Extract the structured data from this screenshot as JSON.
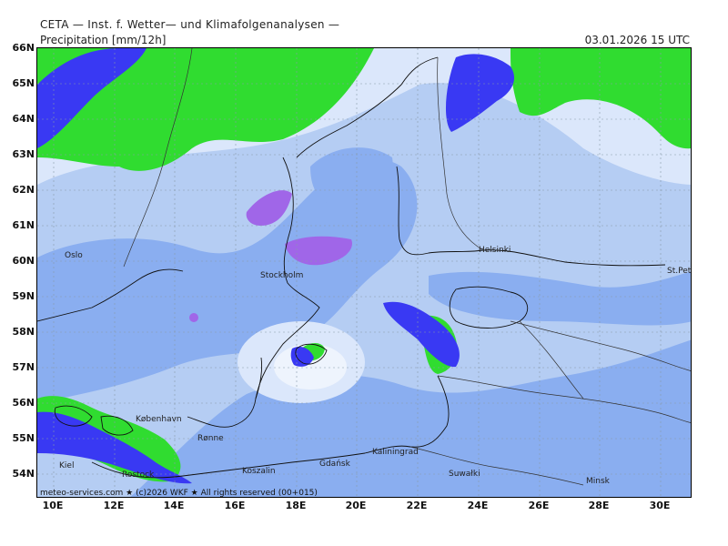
{
  "header": {
    "institute": "CETA — Inst. f. Wetter— und Klimafolgenanalysen —",
    "product": "Precipitation [mm/12h]",
    "valid_time": "03.01.2026  15 UTC"
  },
  "axes": {
    "lat_labels": [
      "66N",
      "65N",
      "64N",
      "63N",
      "62N",
      "61N",
      "60N",
      "59N",
      "58N",
      "57N",
      "56N",
      "55N",
      "54N"
    ],
    "lon_labels": [
      "10E",
      "12E",
      "14E",
      "16E",
      "18E",
      "20E",
      "22E",
      "24E",
      "26E",
      "28E",
      "30E"
    ]
  },
  "cities": {
    "oslo": "Oslo",
    "stockholm": "Stockholm",
    "helsinki": "Helsinki",
    "st_petersburg": "St.Petersbg",
    "kobenhavn": "København",
    "ronne": "Rønne",
    "kiel": "Kiel",
    "rostock": "Rostock",
    "koszalin": "Koszalin",
    "gdansk": "Gdańsk",
    "kaliningrad": "Kaliningrad",
    "suwalki": "Suwałki",
    "minsk": "Minsk"
  },
  "footer": {
    "credit": "meteo-services.com ★ (c)2026 WKF ★ All rights reserved (00+015)"
  },
  "colors": {
    "light_blue": "#dbe7fb",
    "medium_blue": "#b5cdf3",
    "blue": "#7fa6ee",
    "deep_blue": "#3939f3",
    "green": "#30dc30",
    "purple": "#a066e8",
    "pink": "#e060e0"
  }
}
